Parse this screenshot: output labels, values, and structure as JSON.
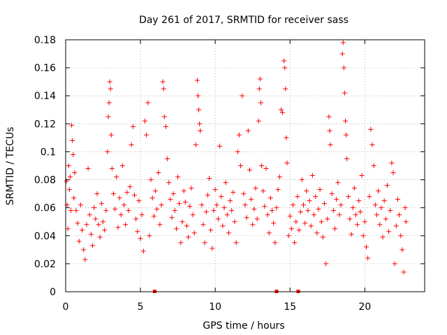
{
  "chart_data": {
    "type": "scatter",
    "title": "Day 261 of 2017, SRMTID for receiver sass",
    "xlabel": "GPS time / hours",
    "ylabel": "SRMTID / TECUs",
    "xlim": [
      0,
      24
    ],
    "ylim": [
      0,
      0.18
    ],
    "x_ticks": [
      0,
      5,
      10,
      15,
      20
    ],
    "x_tick_labels": [
      "0",
      "5",
      "10",
      "15",
      "20"
    ],
    "y_ticks": [
      0,
      0.02,
      0.04,
      0.06,
      0.08,
      0.1,
      0.12,
      0.14,
      0.16,
      0.18
    ],
    "y_tick_labels": [
      "0",
      "0.02",
      "0.04",
      "0.06",
      "0.08",
      "0.1",
      "0.12",
      "0.14",
      "0.16",
      "0.18"
    ],
    "grid": true,
    "marker": "+",
    "color": "#ff0000",
    "series": [
      {
        "name": "SRMTID",
        "points": [
          [
            0.05,
            0.079
          ],
          [
            0.1,
            0.062
          ],
          [
            0.15,
            0.045
          ],
          [
            0.2,
            0.09
          ],
          [
            0.25,
            0.073
          ],
          [
            0.3,
            0.082
          ],
          [
            0.35,
            0.058
          ],
          [
            0.4,
            0.119
          ],
          [
            0.45,
            0.108
          ],
          [
            0.5,
            0.098
          ],
          [
            0.55,
            0.067
          ],
          [
            0.6,
            0.085
          ],
          [
            0.7,
            0.058
          ],
          [
            0.8,
            0.049
          ],
          [
            0.9,
            0.036
          ],
          [
            1.0,
            0.062
          ],
          [
            1.1,
            0.044
          ],
          [
            1.2,
            0.03
          ],
          [
            1.3,
            0.023
          ],
          [
            1.4,
            0.048
          ],
          [
            1.5,
            0.088
          ],
          [
            1.6,
            0.055
          ],
          [
            1.7,
            0.041
          ],
          [
            1.8,
            0.033
          ],
          [
            1.9,
            0.06
          ],
          [
            2.0,
            0.052
          ],
          [
            2.1,
            0.07
          ],
          [
            2.2,
            0.048
          ],
          [
            2.3,
            0.039
          ],
          [
            2.4,
            0.063
          ],
          [
            2.5,
            0.05
          ],
          [
            2.6,
            0.044
          ],
          [
            2.7,
            0.058
          ],
          [
            2.8,
            0.1
          ],
          [
            2.85,
            0.125
          ],
          [
            2.9,
            0.135
          ],
          [
            2.95,
            0.15
          ],
          [
            3.0,
            0.145
          ],
          [
            3.05,
            0.112
          ],
          [
            3.1,
            0.088
          ],
          [
            3.2,
            0.07
          ],
          [
            3.3,
            0.059
          ],
          [
            3.4,
            0.082
          ],
          [
            3.5,
            0.046
          ],
          [
            3.6,
            0.067
          ],
          [
            3.7,
            0.055
          ],
          [
            3.8,
            0.09
          ],
          [
            3.9,
            0.062
          ],
          [
            4.0,
            0.048
          ],
          [
            4.1,
            0.071
          ],
          [
            4.2,
            0.058
          ],
          [
            4.3,
            0.075
          ],
          [
            4.4,
            0.105
          ],
          [
            4.5,
            0.118
          ],
          [
            4.6,
            0.069
          ],
          [
            4.7,
            0.052
          ],
          [
            4.8,
            0.043
          ],
          [
            4.9,
            0.065
          ],
          [
            5.0,
            0.038
          ],
          [
            5.1,
            0.055
          ],
          [
            5.2,
            0.029
          ],
          [
            5.3,
            0.122
          ],
          [
            5.4,
            0.112
          ],
          [
            5.5,
            0.135
          ],
          [
            5.6,
            0.04
          ],
          [
            5.7,
            0.08
          ],
          [
            5.8,
            0.067
          ],
          [
            5.9,
            0.054
          ],
          [
            6.0,
            0.072
          ],
          [
            6.1,
            0.059
          ],
          [
            6.2,
            0.085
          ],
          [
            6.3,
            0.048
          ],
          [
            6.4,
            0.062
          ],
          [
            6.5,
            0.15
          ],
          [
            6.55,
            0.145
          ],
          [
            6.6,
            0.125
          ],
          [
            6.7,
            0.118
          ],
          [
            6.8,
            0.095
          ],
          [
            6.9,
            0.078
          ],
          [
            7.0,
            0.066
          ],
          [
            7.1,
            0.053
          ],
          [
            7.2,
            0.07
          ],
          [
            7.3,
            0.058
          ],
          [
            7.4,
            0.045
          ],
          [
            7.5,
            0.082
          ],
          [
            7.6,
            0.063
          ],
          [
            7.7,
            0.035
          ],
          [
            7.8,
            0.05
          ],
          [
            7.9,
            0.072
          ],
          [
            8.0,
            0.064
          ],
          [
            8.1,
            0.047
          ],
          [
            8.2,
            0.039
          ],
          [
            8.3,
            0.061
          ],
          [
            8.4,
            0.074
          ],
          [
            8.5,
            0.055
          ],
          [
            8.6,
            0.042
          ],
          [
            8.7,
            0.105
          ],
          [
            8.8,
            0.151
          ],
          [
            8.85,
            0.14
          ],
          [
            8.9,
            0.13
          ],
          [
            8.95,
            0.12
          ],
          [
            9.0,
            0.115
          ],
          [
            9.1,
            0.062
          ],
          [
            9.2,
            0.048
          ],
          [
            9.3,
            0.035
          ],
          [
            9.4,
            0.057
          ],
          [
            9.5,
            0.069
          ],
          [
            9.6,
            0.081
          ],
          [
            9.7,
            0.044
          ],
          [
            9.8,
            0.031
          ],
          [
            9.9,
            0.058
          ],
          [
            10.0,
            0.073
          ],
          [
            10.1,
            0.062
          ],
          [
            10.2,
            0.052
          ],
          [
            10.3,
            0.104
          ],
          [
            10.4,
            0.068
          ],
          [
            10.5,
            0.047
          ],
          [
            10.6,
            0.06
          ],
          [
            10.7,
            0.078
          ],
          [
            10.8,
            0.055
          ],
          [
            10.9,
            0.042
          ],
          [
            11.0,
            0.065
          ],
          [
            11.1,
            0.058
          ],
          [
            11.2,
            0.071
          ],
          [
            11.3,
            0.05
          ],
          [
            11.4,
            0.035
          ],
          [
            11.5,
            0.1
          ],
          [
            11.6,
            0.112
          ],
          [
            11.7,
            0.09
          ],
          [
            11.8,
            0.14
          ],
          [
            11.9,
            0.07
          ],
          [
            12.0,
            0.062
          ],
          [
            12.1,
            0.053
          ],
          [
            12.2,
            0.115
          ],
          [
            12.3,
            0.087
          ],
          [
            12.4,
            0.066
          ],
          [
            12.5,
            0.048
          ],
          [
            12.6,
            0.059
          ],
          [
            12.7,
            0.074
          ],
          [
            12.8,
            0.052
          ],
          [
            12.9,
            0.122
          ],
          [
            12.95,
            0.145
          ],
          [
            13.0,
            0.152
          ],
          [
            13.05,
            0.135
          ],
          [
            13.1,
            0.09
          ],
          [
            13.2,
            0.072
          ],
          [
            13.3,
            0.061
          ],
          [
            13.4,
            0.088
          ],
          [
            13.5,
            0.055
          ],
          [
            13.6,
            0.042
          ],
          [
            13.7,
            0.067
          ],
          [
            13.8,
            0.058
          ],
          [
            13.9,
            0.049
          ],
          [
            14.0,
            0.035
          ],
          [
            14.1,
            0.06
          ],
          [
            14.2,
            0.073
          ],
          [
            14.3,
            0.082
          ],
          [
            14.4,
            0.13
          ],
          [
            14.5,
            0.128
          ],
          [
            14.6,
            0.165
          ],
          [
            14.65,
            0.16
          ],
          [
            14.7,
            0.145
          ],
          [
            14.75,
            0.11
          ],
          [
            14.8,
            0.092
          ],
          [
            14.9,
            0.04
          ],
          [
            15.0,
            0.054
          ],
          [
            15.1,
            0.045
          ],
          [
            15.2,
            0.062
          ],
          [
            15.3,
            0.035
          ],
          [
            15.4,
            0.05
          ],
          [
            15.5,
            0.068
          ],
          [
            15.6,
            0.044
          ],
          [
            15.7,
            0.057
          ],
          [
            15.8,
            0.08
          ],
          [
            15.9,
            0.062
          ],
          [
            16.0,
            0.049
          ],
          [
            16.1,
            0.072
          ],
          [
            16.2,
            0.058
          ],
          [
            16.3,
            0.065
          ],
          [
            16.4,
            0.047
          ],
          [
            16.5,
            0.083
          ],
          [
            16.6,
            0.055
          ],
          [
            16.7,
            0.068
          ],
          [
            16.8,
            0.042
          ],
          [
            16.9,
            0.059
          ],
          [
            17.0,
            0.073
          ],
          [
            17.1,
            0.05
          ],
          [
            17.2,
            0.039
          ],
          [
            17.3,
            0.063
          ],
          [
            17.4,
            0.02
          ],
          [
            17.5,
            0.052
          ],
          [
            17.6,
            0.125
          ],
          [
            17.65,
            0.115
          ],
          [
            17.7,
            0.105
          ],
          [
            17.8,
            0.07
          ],
          [
            17.9,
            0.058
          ],
          [
            18.0,
            0.045
          ],
          [
            18.1,
            0.066
          ],
          [
            18.2,
            0.078
          ],
          [
            18.3,
            0.055
          ],
          [
            18.4,
            0.062
          ],
          [
            18.5,
            0.17
          ],
          [
            18.55,
            0.178
          ],
          [
            18.6,
            0.16
          ],
          [
            18.65,
            0.142
          ],
          [
            18.7,
            0.122
          ],
          [
            18.75,
            0.112
          ],
          [
            18.8,
            0.095
          ],
          [
            18.9,
            0.068
          ],
          [
            19.0,
            0.052
          ],
          [
            19.1,
            0.041
          ],
          [
            19.2,
            0.06
          ],
          [
            19.3,
            0.074
          ],
          [
            19.4,
            0.055
          ],
          [
            19.5,
            0.048
          ],
          [
            19.6,
            0.065
          ],
          [
            19.7,
            0.057
          ],
          [
            19.8,
            0.083
          ],
          [
            19.9,
            0.04
          ],
          [
            20.0,
            0.05
          ],
          [
            20.1,
            0.032
          ],
          [
            20.2,
            0.024
          ],
          [
            20.3,
            0.068
          ],
          [
            20.4,
            0.116
          ],
          [
            20.5,
            0.105
          ],
          [
            20.6,
            0.09
          ],
          [
            20.7,
            0.062
          ],
          [
            20.8,
            0.055
          ],
          [
            20.9,
            0.072
          ],
          [
            21.0,
            0.048
          ],
          [
            21.1,
            0.06
          ],
          [
            21.2,
            0.039
          ],
          [
            21.3,
            0.065
          ],
          [
            21.4,
            0.052
          ],
          [
            21.5,
            0.076
          ],
          [
            21.6,
            0.043
          ],
          [
            21.7,
            0.058
          ],
          [
            21.8,
            0.092
          ],
          [
            21.9,
            0.085
          ],
          [
            22.0,
            0.02
          ],
          [
            22.1,
            0.047
          ],
          [
            22.2,
            0.066
          ],
          [
            22.3,
            0.055
          ],
          [
            22.4,
            0.04
          ],
          [
            22.5,
            0.03
          ],
          [
            22.6,
            0.014
          ],
          [
            22.7,
            0.06
          ],
          [
            22.75,
            0.05
          ]
        ]
      }
    ],
    "dropout_markers_x": [
      5.95,
      14.1,
      15.55
    ]
  }
}
